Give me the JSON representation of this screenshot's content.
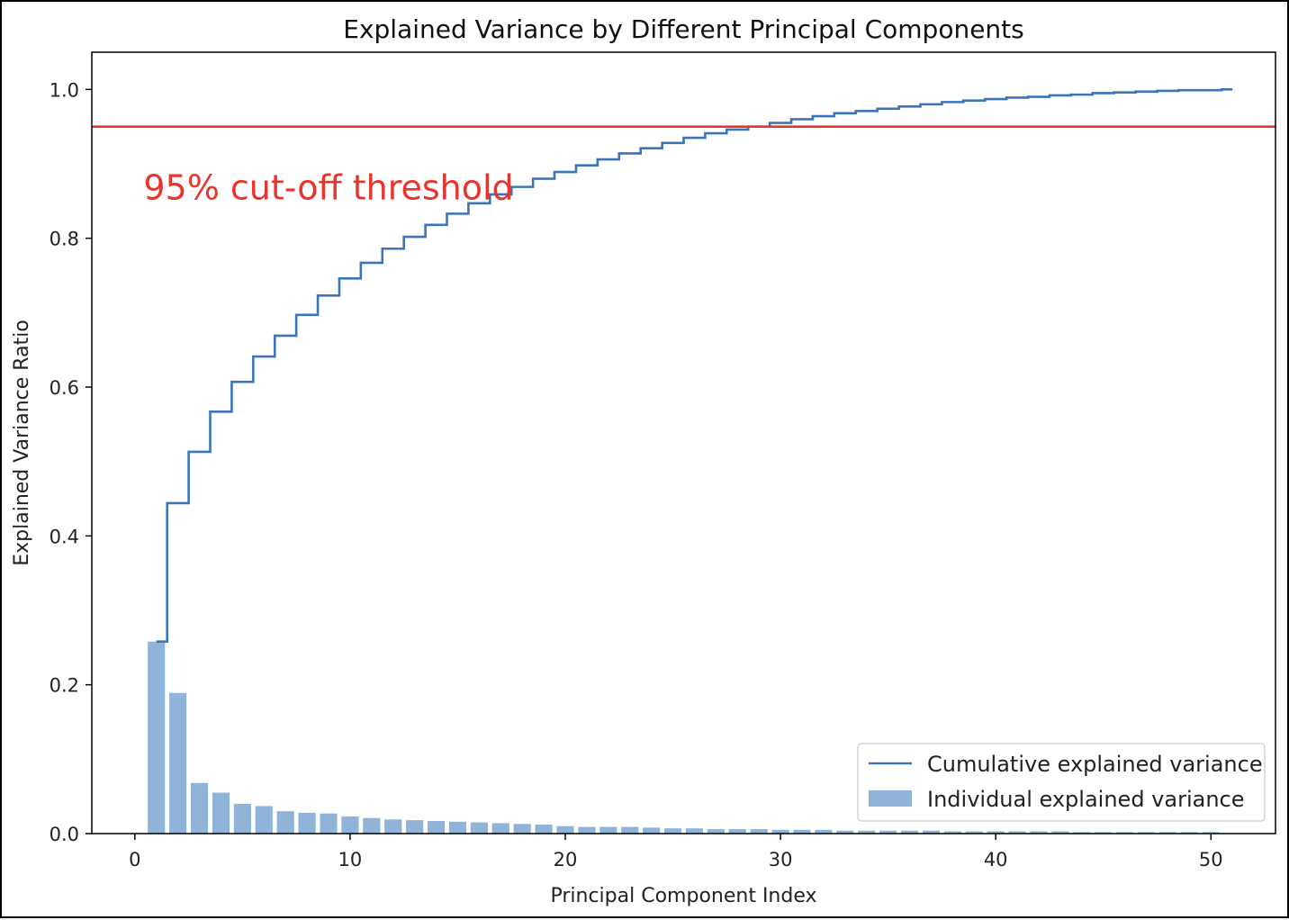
{
  "chart_data": {
    "type": "bar",
    "title": "Explained Variance by Different Principal Components",
    "xlabel": "Principal Component Index",
    "ylabel": "Explained Variance Ratio",
    "xlim": [
      -2,
      53
    ],
    "ylim": [
      0,
      1.05
    ],
    "xticks": [
      0,
      10,
      20,
      30,
      40,
      50
    ],
    "yticks": [
      0.0,
      0.2,
      0.4,
      0.6,
      0.8,
      1.0
    ],
    "xtick_labels": [
      "0",
      "10",
      "20",
      "30",
      "40",
      "50"
    ],
    "ytick_labels": [
      "0.0",
      "0.2",
      "0.4",
      "0.6",
      "0.8",
      "1.0"
    ],
    "grid": false,
    "legend_position": "lower-right",
    "colors": {
      "cumulative": "#3b75b8",
      "individual": "#8fb3d9",
      "threshold": "#e8342b"
    },
    "threshold": {
      "value": 0.95,
      "label": "95% cut-off threshold"
    },
    "legend": [
      {
        "label": "Cumulative explained variance",
        "kind": "line"
      },
      {
        "label": "Individual explained variance",
        "kind": "patch"
      }
    ],
    "series": [
      {
        "name": "Individual explained variance",
        "type": "bar",
        "x": [
          1,
          2,
          3,
          4,
          5,
          6,
          7,
          8,
          9,
          10,
          11,
          12,
          13,
          14,
          15,
          16,
          17,
          18,
          19,
          20,
          21,
          22,
          23,
          24,
          25,
          26,
          27,
          28,
          29,
          30,
          31,
          32,
          33,
          34,
          35,
          36,
          37,
          38,
          39,
          40,
          41,
          42,
          43,
          44,
          45,
          46,
          47,
          48,
          49,
          50
        ],
        "values": [
          0.258,
          0.189,
          0.068,
          0.055,
          0.04,
          0.037,
          0.03,
          0.028,
          0.027,
          0.023,
          0.021,
          0.019,
          0.018,
          0.017,
          0.016,
          0.015,
          0.014,
          0.013,
          0.012,
          0.01,
          0.009,
          0.009,
          0.009,
          0.008,
          0.007,
          0.007,
          0.006,
          0.006,
          0.006,
          0.005,
          0.005,
          0.005,
          0.004,
          0.004,
          0.004,
          0.004,
          0.004,
          0.003,
          0.003,
          0.003,
          0.003,
          0.003,
          0.003,
          0.002,
          0.002,
          0.002,
          0.002,
          0.002,
          0.002,
          0.002
        ]
      },
      {
        "name": "Cumulative explained variance",
        "type": "step",
        "x": [
          1,
          2,
          3,
          4,
          5,
          6,
          7,
          8,
          9,
          10,
          11,
          12,
          13,
          14,
          15,
          16,
          17,
          18,
          19,
          20,
          21,
          22,
          23,
          24,
          25,
          26,
          27,
          28,
          29,
          30,
          31,
          32,
          33,
          34,
          35,
          36,
          37,
          38,
          39,
          40,
          41,
          42,
          43,
          44,
          45,
          46,
          47,
          48,
          49,
          50,
          51
        ],
        "values": [
          0.258,
          0.444,
          0.513,
          0.567,
          0.607,
          0.641,
          0.669,
          0.697,
          0.723,
          0.746,
          0.767,
          0.786,
          0.802,
          0.818,
          0.833,
          0.847,
          0.859,
          0.869,
          0.88,
          0.889,
          0.898,
          0.906,
          0.914,
          0.921,
          0.928,
          0.935,
          0.941,
          0.946,
          0.95,
          0.955,
          0.96,
          0.964,
          0.968,
          0.971,
          0.974,
          0.977,
          0.98,
          0.983,
          0.985,
          0.987,
          0.989,
          0.99,
          0.992,
          0.993,
          0.995,
          0.996,
          0.997,
          0.998,
          0.999,
          0.999,
          1.0
        ]
      }
    ]
  }
}
